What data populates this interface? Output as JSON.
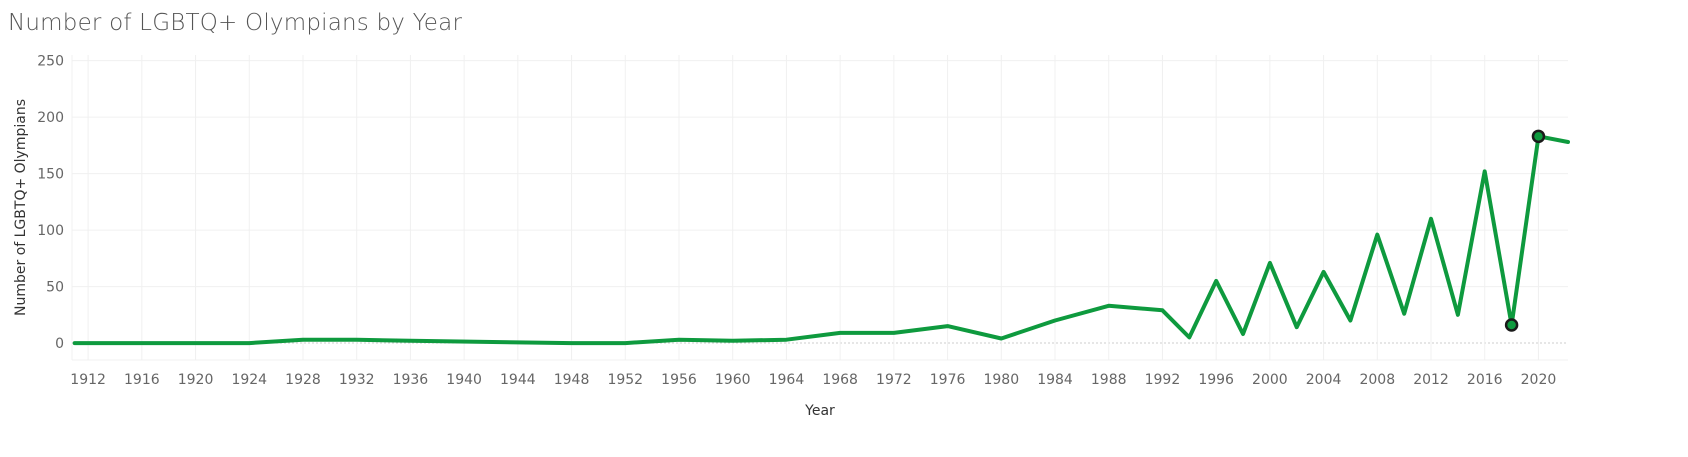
{
  "chart_data": {
    "type": "line",
    "title": "Number of LGBTQ+ Olympians by Year",
    "xlabel": "Year",
    "ylabel": "Number of LGBTQ+ Olympians",
    "ylim": [
      -15,
      255
    ],
    "xlim": [
      1910.8,
      2022.2
    ],
    "grid": true,
    "legend": "none",
    "colors": {
      "line": "#0e9a3e",
      "marker_fill": "#0e9a3e",
      "marker_stroke": "#1a1a1a",
      "grid": "#f0f0f0",
      "zero_line": "#cccccc"
    },
    "yticks": [
      0,
      50,
      100,
      150,
      200,
      250
    ],
    "xticks": [
      1912,
      1916,
      1920,
      1924,
      1928,
      1932,
      1936,
      1940,
      1944,
      1948,
      1952,
      1956,
      1960,
      1964,
      1968,
      1972,
      1976,
      1980,
      1984,
      1988,
      1992,
      1996,
      2000,
      2004,
      2008,
      2012,
      2016,
      2020
    ],
    "series": [
      {
        "x": [
          1911,
          1912,
          1916,
          1920,
          1924,
          1928,
          1932,
          1936,
          1948,
          1952,
          1956,
          1960,
          1964,
          1968,
          1972,
          1976,
          1980,
          1984,
          1988,
          1992,
          1994,
          1996,
          1998,
          2000,
          2002,
          2004,
          2006,
          2008,
          2010,
          2012,
          2014,
          2016,
          2018,
          2020,
          2022.2
        ],
        "y": [
          0,
          0,
          0,
          0,
          0,
          3,
          3,
          2,
          0,
          0,
          3,
          2,
          3,
          9,
          9,
          15,
          4,
          20,
          33,
          29,
          5,
          55,
          8,
          71,
          14,
          63,
          20,
          96,
          26,
          110,
          25,
          152,
          16,
          183,
          178
        ]
      }
    ],
    "highlighted_points": [
      {
        "x": 2018,
        "y": 16
      },
      {
        "x": 2020,
        "y": 183
      }
    ]
  }
}
